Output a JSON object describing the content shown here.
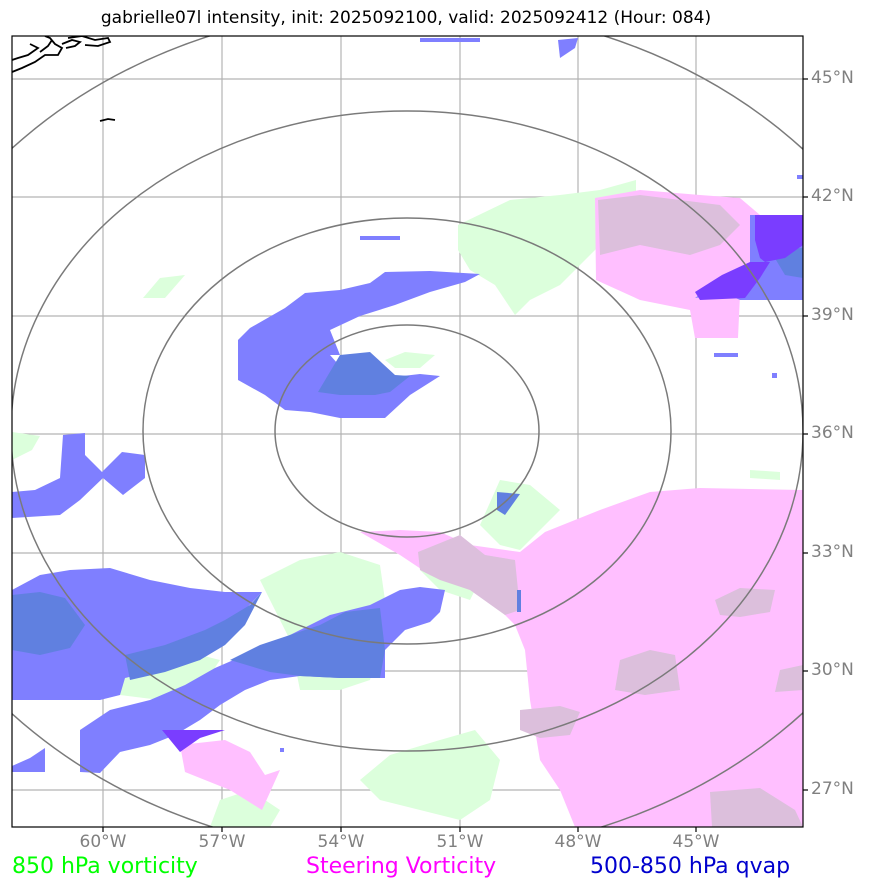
{
  "title": "gabrielle07l intensity, init: 2025092100, valid: 2025092412 (Hour: 084)",
  "lon_labels": [
    "60°W",
    "57°W",
    "54°W",
    "51°W",
    "48°W",
    "45°W"
  ],
  "lat_labels": [
    "45°N",
    "42°N",
    "39°N",
    "36°N",
    "33°N",
    "30°N",
    "27°N"
  ],
  "legend": [
    {
      "label": "850 hPa vorticity",
      "color": "#00ff00"
    },
    {
      "label": "Steering Vorticity",
      "color": "#ff00ff"
    },
    {
      "label": "500-850 hPa qvap",
      "color": "#0000cd"
    }
  ],
  "colors": {
    "vorticity_850": "#dcffdc",
    "steering": "#ffbfff",
    "steering_overlap": "#dcbfdc",
    "qvap": "#7f7fff",
    "qvap_overlap": "#6080e0",
    "qvap_strong": "#7a3dff",
    "range_ring": "#7a7a7a",
    "grid": "#b3b3b3",
    "coast": "#000000"
  }
}
